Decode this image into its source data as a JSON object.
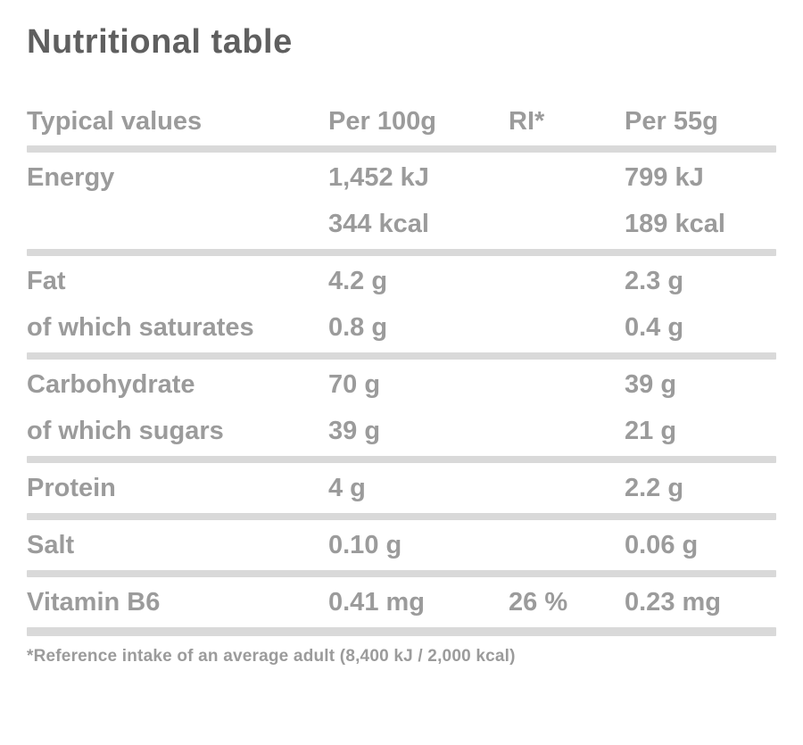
{
  "title": "Nutritional table",
  "table": {
    "headers": {
      "label": "Typical values",
      "per100": "Per 100g",
      "ri": "RI*",
      "portion": "Per 55g"
    },
    "rows": [
      {
        "label": "Energy",
        "per100": "1,452 kJ",
        "ri": "",
        "portion": "799 kJ"
      },
      {
        "label": "",
        "per100": "344 kcal",
        "ri": "",
        "portion": "189 kcal"
      },
      {
        "label": "Fat",
        "per100": "4.2 g",
        "ri": "",
        "portion": "2.3 g"
      },
      {
        "label": "of which saturates",
        "per100": "0.8 g",
        "ri": "",
        "portion": "0.4 g"
      },
      {
        "label": "Carbohydrate",
        "per100": "70 g",
        "ri": "",
        "portion": "39 g"
      },
      {
        "label": "of which sugars",
        "per100": "39 g",
        "ri": "",
        "portion": "21 g"
      },
      {
        "label": "Protein",
        "per100": "4 g",
        "ri": "",
        "portion": "2.2 g"
      },
      {
        "label": "Salt",
        "per100": "0.10 g",
        "ri": "",
        "portion": "0.06 g"
      },
      {
        "label": "Vitamin B6",
        "per100": "0.41 mg",
        "ri": "26 %",
        "portion": "0.23 mg"
      }
    ],
    "footnote": "*Reference intake of an average adult (8,400 kJ / 2,000 kcal)"
  },
  "colors": {
    "title_text": "#5f5f5f",
    "body_text": "#9b9b9b",
    "divider": "#d9d9d9",
    "background": "#ffffff"
  }
}
